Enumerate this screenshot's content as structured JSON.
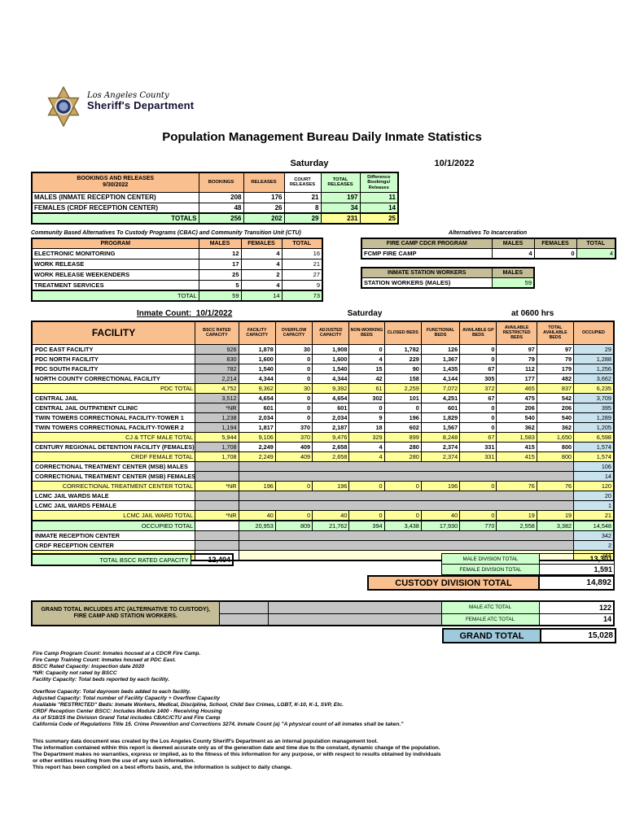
{
  "palette": {
    "peach": "#FABF8F",
    "green": "#CCFFCC",
    "yellow": "#FFFF99",
    "blue": "#C8E2EE",
    "gray": "#C4C4C4",
    "tan": "#C4BD97",
    "totalblue": "#9FC9DC",
    "paleyellow": "#FFFFD9"
  },
  "header": {
    "agency_line1": "Los Angeles County",
    "agency_line2": "Sheriff's Department",
    "title": "Population Management Bureau Daily Inmate Statistics",
    "day": "Saturday",
    "date": "10/1/2022"
  },
  "bookings_table": {
    "title": "BOOKINGS AND RELEASES",
    "subtitle": "9/30/2022",
    "columns": [
      "BOOKINGS",
      "RELEASES",
      "COURT RELEASES",
      "TOTAL RELEASES",
      "Difference Bookings/ Releases"
    ],
    "rows": [
      {
        "label": "MALES (INMATE RECEPTION CENTER)",
        "values": [
          "208",
          "176",
          "21",
          "197",
          "11"
        ]
      },
      {
        "label": "FEMALES (CRDF RECEPTION CENTER)",
        "values": [
          "48",
          "26",
          "8",
          "34",
          "14"
        ]
      }
    ],
    "totals": {
      "label": "TOTALS",
      "values": [
        "256",
        "202",
        "29",
        "231",
        "25"
      ]
    }
  },
  "cbac_table": {
    "title": "Community Based Alternatives To Custody Programs (CBAC) and Community Transition Unit (CTU)",
    "columns": [
      "PROGRAM",
      "MALES",
      "FEMALES",
      "TOTAL"
    ],
    "rows": [
      {
        "label": "ELECTRONIC MONITORING",
        "values": [
          "12",
          "4",
          "16"
        ]
      },
      {
        "label": "WORK RELEASE",
        "values": [
          "17",
          "4",
          "21"
        ]
      },
      {
        "label": "WORK RELEASE WEEKENDERS",
        "values": [
          "25",
          "2",
          "27"
        ]
      },
      {
        "label": "TREATMENT SERVICES",
        "values": [
          "5",
          "4",
          "9"
        ]
      }
    ],
    "totals": {
      "label": "TOTAL",
      "values": [
        "59",
        "14",
        "73"
      ]
    }
  },
  "ati": {
    "title": "Alternatives To Incarceration",
    "fire_camp": {
      "header": "FIRE CAMP CDCR PROGRAM",
      "columns": [
        "MALES",
        "FEMALES",
        "TOTAL"
      ],
      "row": {
        "label": "FCMP FIRE CAMP",
        "values": [
          "4",
          "0",
          "4"
        ]
      }
    },
    "station_workers": {
      "header": "INMATE STATION WORKERS",
      "column": "MALES",
      "row": {
        "label": "STATION WORKERS (MALES)",
        "value": "59"
      }
    }
  },
  "facility_table": {
    "count_label": "Inmate Count:",
    "count_date": "10/1/2022",
    "day": "Saturday",
    "time": "at 0600 hrs",
    "columns": [
      "FACILITY",
      "BSCC RATED CAPACITY",
      "FACILITY CAPACITY",
      "OVERFLOW CAPACITY",
      "ADJUSTED CAPACITY",
      "NON-WORKING BEDS",
      "CLOSED BEDS",
      "FUNCTIONAL BEDS",
      "AVAILABLE GP BEDS",
      "AVAILABLE RESTRICTED BEDS",
      "TOTAL AVAILABLE BEDS",
      "OCCUPIED"
    ],
    "rows": [
      {
        "type": "data",
        "label": "PDC EAST FACILITY",
        "bscc": "926",
        "values": [
          "1,878",
          "30",
          "1,908",
          "0",
          "1,782",
          "126",
          "0",
          "97",
          "97"
        ],
        "occupied": "29"
      },
      {
        "type": "data",
        "label": "PDC NORTH FACILITY",
        "bscc": "830",
        "values": [
          "1,600",
          "0",
          "1,600",
          "4",
          "229",
          "1,367",
          "0",
          "79",
          "79"
        ],
        "occupied": "1,288"
      },
      {
        "type": "data",
        "label": "PDC SOUTH FACILITY",
        "bscc": "782",
        "values": [
          "1,540",
          "0",
          "1,540",
          "15",
          "90",
          "1,435",
          "67",
          "112",
          "179"
        ],
        "occupied": "1,256"
      },
      {
        "type": "data",
        "label": "NORTH COUNTY CORRECTIONAL FACILITY",
        "bscc": "2,214",
        "values": [
          "4,344",
          "0",
          "4,344",
          "42",
          "158",
          "4,144",
          "305",
          "177",
          "482"
        ],
        "occupied": "3,662"
      },
      {
        "type": "subtotal",
        "label": "PDC TOTAL",
        "bscc": "4,752",
        "values": [
          "9,362",
          "30",
          "9,392",
          "61",
          "2,259",
          "7,072",
          "372",
          "465",
          "837"
        ],
        "occupied": "6,235"
      },
      {
        "type": "data",
        "label": "CENTRAL JAIL",
        "bscc": "3,512",
        "values": [
          "4,654",
          "0",
          "4,654",
          "302",
          "101",
          "4,251",
          "67",
          "475",
          "542"
        ],
        "occupied": "3,709"
      },
      {
        "type": "data",
        "label": "CENTRAL JAIL OUTPATIENT CLINIC",
        "bscc": "*NR",
        "values": [
          "601",
          "0",
          "601",
          "0",
          "0",
          "601",
          "0",
          "206",
          "206"
        ],
        "occupied": "395"
      },
      {
        "type": "data",
        "label": "TWIN TOWERS CORRECTIONAL FACILITY-TOWER 1",
        "bscc": "1,238",
        "values": [
          "2,034",
          "0",
          "2,034",
          "9",
          "196",
          "1,829",
          "0",
          "540",
          "540"
        ],
        "occupied": "1,289"
      },
      {
        "type": "data",
        "label": "TWIN TOWERS CORRECTIONAL FACILITY-TOWER 2",
        "bscc": "1,194",
        "values": [
          "1,817",
          "370",
          "2,187",
          "18",
          "602",
          "1,567",
          "0",
          "362",
          "362"
        ],
        "occupied": "1,205"
      },
      {
        "type": "subtotal",
        "label": "CJ & TTCF MALE TOTAL",
        "bscc": "5,944",
        "values": [
          "9,106",
          "370",
          "9,476",
          "329",
          "899",
          "8,248",
          "67",
          "1,583",
          "1,650"
        ],
        "occupied": "6,598"
      },
      {
        "type": "data",
        "label": "CENTURY REGIONAL DETENTION FACILITY (FEMALES)",
        "bscc": "1,708",
        "values": [
          "2,249",
          "409",
          "2,658",
          "4",
          "280",
          "2,374",
          "331",
          "415",
          "800"
        ],
        "occupied": "1,574"
      },
      {
        "type": "subtotal",
        "label": "CRDF FEMALE TOTAL",
        "bscc": "1,708",
        "values": [
          "2,249",
          "409",
          "2,658",
          "4",
          "280",
          "2,374",
          "331",
          "415",
          "800"
        ],
        "occupied": "1,574"
      },
      {
        "type": "band",
        "label": "CORRECTIONAL TREATMENT CENTER (MSB) MALES",
        "bscc": "",
        "occupied": "106"
      },
      {
        "type": "band",
        "label": "CORRECTIONAL TREATMENT CENTER (MSB) FEMALES",
        "bscc": "",
        "occupied": "14"
      },
      {
        "type": "subtotal",
        "label": "CORRECTIONAL TREATMENT CENTER TOTAL",
        "bscc": "*NR",
        "values": [
          "196",
          "0",
          "196",
          "0",
          "0",
          "196",
          "0",
          "76",
          "76"
        ],
        "occupied": "120"
      },
      {
        "type": "band",
        "label": "LCMC JAIL WARDS MALE",
        "bscc": "",
        "occupied": "20"
      },
      {
        "type": "band",
        "label": "LCMC JAIL WARDS FEMALE",
        "bscc": "",
        "occupied": "1"
      },
      {
        "type": "subtotal",
        "label": "LCMC JAIL WARD TOTAL",
        "bscc": "*NR",
        "values": [
          "40",
          "0",
          "40",
          "0",
          "0",
          "40",
          "0",
          "19",
          "19"
        ],
        "occupied": "21"
      },
      {
        "type": "grand",
        "label": "OCCUPIED TOTAL",
        "bscc": "",
        "values": [
          "20,953",
          "809",
          "21,762",
          "394",
          "3,438",
          "17,930",
          "770",
          "2,558",
          "3,382"
        ],
        "occupied": "14,548"
      },
      {
        "type": "band",
        "label": "INMATE RECEPTION CENTER",
        "bscc": "",
        "occupied": "342"
      },
      {
        "type": "band",
        "label": "CRDF RECEPTION CENTER",
        "bscc": "",
        "occupied": "2"
      },
      {
        "type": "receptiontotal",
        "label": "RECEPTION CENTERS TOTAL",
        "bscc": "",
        "occupied": "344"
      }
    ]
  },
  "bottom": {
    "bscc_capacity_label": "TOTAL BSCC RATED CAPACITY",
    "bscc_capacity_value": "12,404",
    "male_division_label": "MALE DIVISION TOTAL",
    "male_division_value": "13,301",
    "female_division_label": "FEMALE DIVISION TOTAL",
    "female_division_value": "1,591",
    "custody_division_label": "CUSTODY DIVISION TOTAL",
    "custody_division_value": "14,892"
  },
  "grand_total": {
    "note": "GRAND TOTAL INCLUDES ATC (ALTERNATIVE TO CUSTODY), FIRE CAMP AND STATION WORKERS.",
    "male_atc_label": "MALE ATC TOTAL",
    "male_atc_value": "122",
    "female_atc_label": "FEMALE ATC TOTAL",
    "female_atc_value": "14",
    "label": "GRAND TOTAL",
    "value": "15,028"
  },
  "footnotes_top": [
    "Fire Camp Program Count: Inmates housed at a CDCR Fire Camp.",
    "Fire Camp Training Count: Inmates housed at PDC East.",
    "BSCC Rated Capacity: Inspection date 2020",
    "*NR: Capacity not rated by BSCC",
    "Facility Capacity: Total beds reported by each facility."
  ],
  "footnotes_bottom": [
    "Overflow Capacity: Total dayroom beds added to each facility.",
    "Adjusted Capacity: Total number of Facility Capacity + Overflow Capacity",
    "Available \"RESTRICTED\" Beds: Inmate Workers, Medical, Discipline, School, Child Sex Crimes,  LGBT, K-10, K-1, SVP, Etc.",
    "CRDF Reception Center BSCC: Includes Module 1400 - Receiving Housing",
    "As of 5/18/15 the Division Grand Total includes CBAC/CTU and Fire Camp",
    "California Code of Regulations Title 15. Crime Prevention and Corrections 3274. Inmate Count (a) \"A physical count of all inmates shall be taken.\""
  ],
  "disclaimer": [
    "This summary data document was created by the Los Angeles County Sheriff's Department as an internal population management tool.",
    "The information contained within this report is deemed accurate only as of the generation date and time due to the constant, dynamic change of the population.",
    "The Department makes no warranties, express or implied, as to the fitness of this information for any purpose, or with respect to results obtained by individuals",
    "or other entities resulting from the use of any such information.",
    "This report has been compiled on a best efforts basis, and, the information is subject to daily change."
  ]
}
